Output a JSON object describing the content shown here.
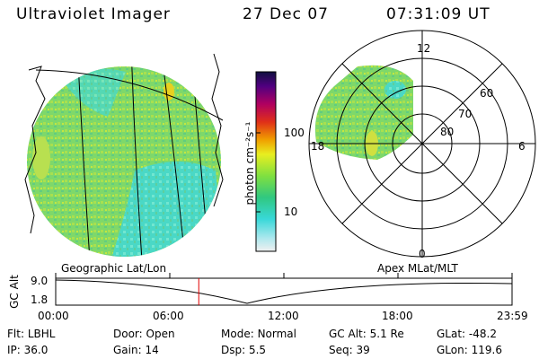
{
  "header": {
    "instrument": "Ultraviolet Imager",
    "date": "27 Dec 07",
    "time": "07:31:09 UT"
  },
  "colorbar": {
    "unit_label": "photon cm⁻²s⁻¹",
    "ticks": [
      "100",
      "10"
    ]
  },
  "polar_plot": {
    "mlt_labels": [
      "12",
      "18",
      "6",
      "0"
    ],
    "mlat_labels": [
      "60",
      "70",
      "80"
    ]
  },
  "timeline": {
    "left_title": "Geographic Lat/Lon",
    "right_title": "Apex MLat/MLT",
    "axis_label": "GC Alt",
    "y_ticks": [
      "9.0",
      "1.8"
    ],
    "x_ticks": [
      "00:00",
      "06:00",
      "12:00",
      "18:00",
      "23:59"
    ],
    "cursor_time": "07:31:09",
    "cursor_color": "#e00000"
  },
  "status": {
    "row1": [
      {
        "label": "Flt:",
        "value": "LBHL"
      },
      {
        "label": "Door:",
        "value": "Open"
      },
      {
        "label": "Mode:",
        "value": "Normal"
      },
      {
        "label": "GC Alt:",
        "value": "5.1 Re"
      },
      {
        "label": "GLat:",
        "value": "-48.2"
      }
    ],
    "row2": [
      {
        "label": "IP:",
        "value": "36.0"
      },
      {
        "label": "Gain:",
        "value": "14"
      },
      {
        "label": "Dsp:",
        "value": "5.5"
      },
      {
        "label": "Seq:",
        "value": "39"
      },
      {
        "label": "GLon:",
        "value": "119.6"
      }
    ]
  }
}
